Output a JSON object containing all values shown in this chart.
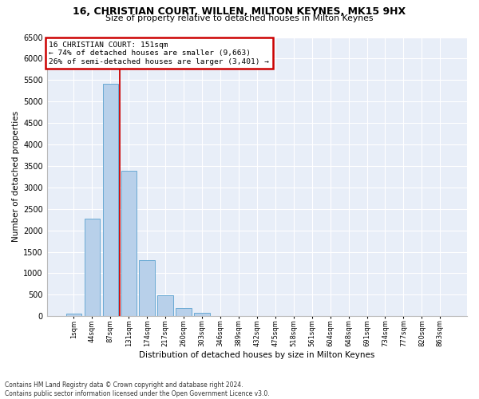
{
  "title1": "16, CHRISTIAN COURT, WILLEN, MILTON KEYNES, MK15 9HX",
  "title2": "Size of property relative to detached houses in Milton Keynes",
  "xlabel": "Distribution of detached houses by size in Milton Keynes",
  "ylabel": "Number of detached properties",
  "footnote1": "Contains HM Land Registry data © Crown copyright and database right 2024.",
  "footnote2": "Contains public sector information licensed under the Open Government Licence v3.0.",
  "annotation_line1": "16 CHRISTIAN COURT: 151sqm",
  "annotation_line2": "← 74% of detached houses are smaller (9,663)",
  "annotation_line3": "26% of semi-detached houses are larger (3,401) →",
  "bar_labels": [
    "1sqm",
    "44sqm",
    "87sqm",
    "131sqm",
    "174sqm",
    "217sqm",
    "260sqm",
    "303sqm",
    "346sqm",
    "389sqm",
    "432sqm",
    "475sqm",
    "518sqm",
    "561sqm",
    "604sqm",
    "648sqm",
    "691sqm",
    "734sqm",
    "777sqm",
    "820sqm",
    "863sqm"
  ],
  "bar_values": [
    70,
    2270,
    5420,
    3380,
    1310,
    490,
    195,
    80,
    0,
    0,
    0,
    0,
    0,
    0,
    0,
    0,
    0,
    0,
    0,
    0,
    0
  ],
  "bar_color": "#b8d0ea",
  "bar_edge_color": "#6aaad4",
  "vline_index": 3,
  "vline_color": "#cc0000",
  "annotation_box_color": "#cc0000",
  "background_color": "#e8eef8",
  "grid_color": "#ffffff",
  "ylim": [
    0,
    6500
  ],
  "yticks": [
    0,
    500,
    1000,
    1500,
    2000,
    2500,
    3000,
    3500,
    4000,
    4500,
    5000,
    5500,
    6000,
    6500
  ]
}
